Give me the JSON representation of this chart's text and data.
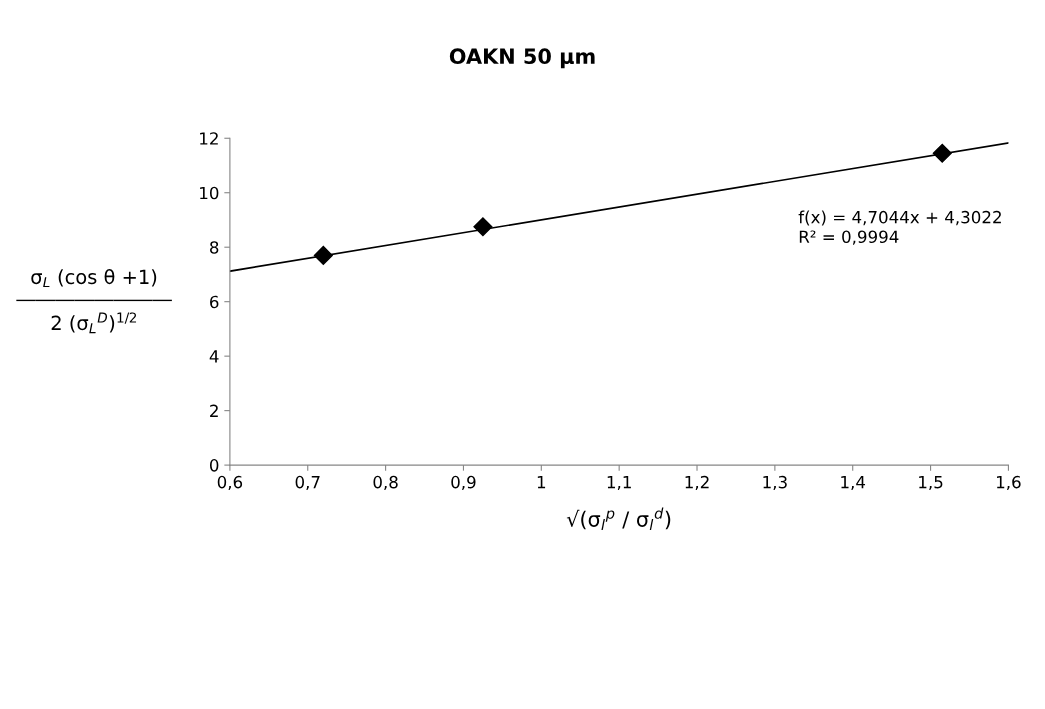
{
  "chart_data": {
    "type": "scatter",
    "title": "OAKN 50 µm",
    "xlabel": "√(σ$_{l}$$^{p}$ / σ$_{l}$$^{d}$)",
    "ylabel": "σ$_{L}$ (cos θ +1)\n――――――――\n2 (σ$_{L}$$^{D}$)$^{1/2}$",
    "series": [
      {
        "color": "#000000",
        "marker": "diamond",
        "x": [
          0.72,
          0.925,
          1.515
        ],
        "values": [
          7.7,
          8.75,
          11.45
        ]
      },
      {
        "type": "line",
        "color": "#000000",
        "line_style": "solid",
        "x": [
          0.6,
          1.6
        ],
        "values": [
          7.12,
          11.83
        ]
      }
    ],
    "annotations": [
      "f(x) = 4,7044x + 4,3022",
      "R² = 0,9994"
    ],
    "xlim": [
      0.6,
      1.6
    ],
    "xticks": [
      {
        "value": 0.6,
        "label": "0,6"
      },
      {
        "value": 0.7,
        "label": "0,7"
      },
      {
        "value": 0.8,
        "label": "0,8"
      },
      {
        "value": 0.9,
        "label": "0,9"
      },
      1,
      {
        "value": 1.1,
        "label": "1,1"
      },
      {
        "value": 1.2,
        "label": "1,2"
      },
      {
        "value": 1.3,
        "label": "1,3"
      },
      {
        "value": 1.4,
        "label": "1,4"
      },
      {
        "value": 1.5,
        "label": "1,5"
      },
      {
        "value": 1.6,
        "label": "1,6"
      }
    ],
    "ylim": [
      0,
      12
    ],
    "yticks": [
      0,
      2,
      4,
      6,
      8,
      10,
      12
    ],
    "grid": false,
    "legend": false
  }
}
